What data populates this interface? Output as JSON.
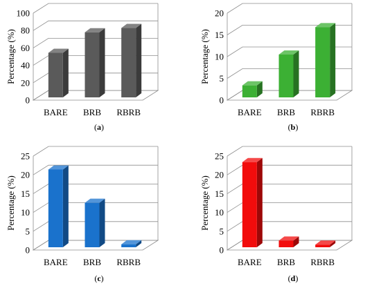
{
  "chart_data": [
    {
      "type": "bar",
      "panel_label": "(a)",
      "ylabel": "Percentage (%)",
      "ylim": [
        0,
        100
      ],
      "yticks": [
        0,
        20,
        40,
        60,
        80,
        100
      ],
      "categories": [
        "BARE",
        "BRB",
        "RBRB"
      ],
      "values": [
        52,
        76,
        81
      ],
      "color": "#5a5a5a"
    },
    {
      "type": "bar",
      "panel_label": "(b)",
      "ylabel": "Percentage (%)",
      "ylim": [
        0,
        20
      ],
      "yticks": [
        0,
        5,
        10,
        15,
        20
      ],
      "categories": [
        "BARE",
        "BRB",
        "RBRB"
      ],
      "values": [
        2.8,
        10.0,
        16.4
      ],
      "color": "#3cb034"
    },
    {
      "type": "bar",
      "panel_label": "(c)",
      "ylabel": "Percentage (%)",
      "ylim": [
        0,
        25
      ],
      "yticks": [
        0,
        5,
        10,
        15,
        20,
        25
      ],
      "categories": [
        "BARE",
        "BRB",
        "RBRB"
      ],
      "values": [
        21.0,
        12.0,
        0.8
      ],
      "color": "#1a72cc"
    },
    {
      "type": "bar",
      "panel_label": "(d)",
      "ylabel": "Percentage (%)",
      "ylim": [
        0,
        25
      ],
      "yticks": [
        0,
        5,
        10,
        15,
        20,
        25
      ],
      "categories": [
        "BARE",
        "BRB",
        "RBRB"
      ],
      "values": [
        23.0,
        1.8,
        0.7
      ],
      "color": "#f20c0c"
    }
  ]
}
